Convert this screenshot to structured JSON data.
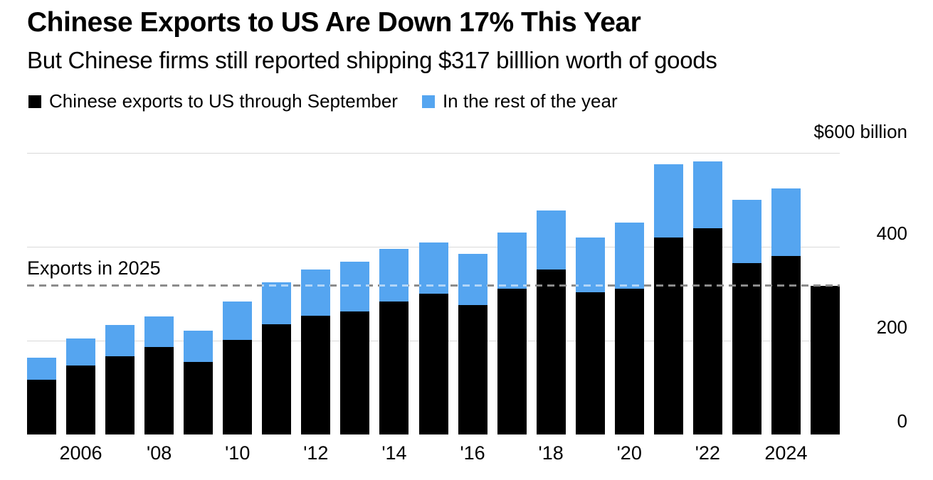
{
  "chart_data": {
    "type": "bar",
    "stacked": true,
    "title": "Chinese Exports to US Are Down 17% This Year",
    "subtitle": "But Chinese firms still reported shipping $317 billlion worth of goods",
    "legend_position": "top",
    "background_color": "#ffffff",
    "gridline_color": "#d9d9d9",
    "y_axis": {
      "top_label": "$600 billion",
      "ymax": 600,
      "ticks": [
        400,
        200,
        0
      ],
      "gridlines": [
        600,
        400,
        200
      ]
    },
    "reference_line": {
      "label": "Exports in 2025",
      "value": 317
    },
    "years": [
      2005,
      2006,
      2007,
      2008,
      2009,
      2010,
      2011,
      2012,
      2013,
      2014,
      2015,
      2016,
      2017,
      2018,
      2019,
      2020,
      2021,
      2022,
      2023,
      2024,
      2025
    ],
    "x_tick_labels": [
      {
        "index": 1,
        "label": "2006"
      },
      {
        "index": 3,
        "label": "'08"
      },
      {
        "index": 5,
        "label": "'10"
      },
      {
        "index": 7,
        "label": "'12"
      },
      {
        "index": 9,
        "label": "'14"
      },
      {
        "index": 11,
        "label": "'16"
      },
      {
        "index": 13,
        "label": "'18"
      },
      {
        "index": 15,
        "label": "'20"
      },
      {
        "index": 17,
        "label": "'22"
      },
      {
        "index": 19,
        "label": "2024"
      }
    ],
    "series": [
      {
        "name": "Chinese exports to US through September",
        "color": "#000000",
        "values": [
          117,
          147,
          167,
          186,
          155,
          202,
          235,
          253,
          262,
          283,
          300,
          275,
          310,
          351,
          303,
          310,
          419,
          440,
          365,
          381,
          317
        ]
      },
      {
        "name": "In the rest of the year",
        "color": "#55A5F0",
        "values": [
          46,
          57,
          66,
          66,
          66,
          81,
          90,
          99,
          106,
          113,
          109,
          110,
          120,
          127,
          116,
          142,
          157,
          142,
          135,
          144,
          0
        ]
      }
    ]
  }
}
